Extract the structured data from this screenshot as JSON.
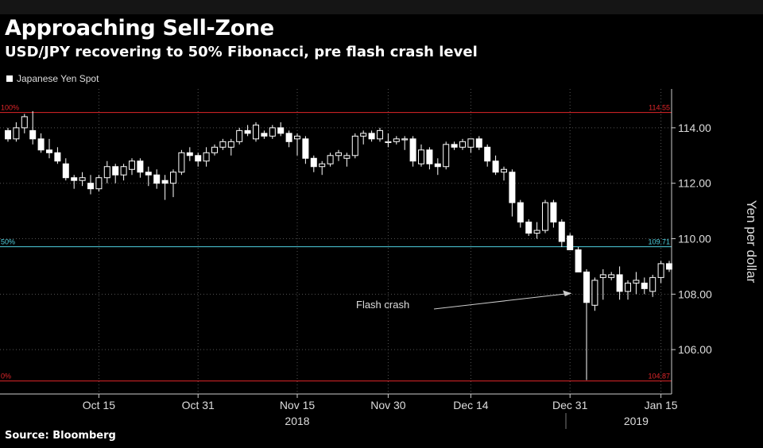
{
  "chart_data": {
    "type": "candlestick",
    "title": "Approaching Sell-Zone",
    "subtitle": "USD/JPY recovering to 50% Fibonacci, pre flash crash level",
    "series_name": "Japanese Yen Spot",
    "ylabel": "Yen per dollar",
    "source": "Source: Bloomberg",
    "y_range": [
      104.4,
      115.4
    ],
    "y_ticks": [
      {
        "value": 106,
        "label": "106.00"
      },
      {
        "value": 108,
        "label": "108.00"
      },
      {
        "value": 110,
        "label": "110.00"
      },
      {
        "value": 112,
        "label": "112.00"
      },
      {
        "value": 114,
        "label": "114.00"
      }
    ],
    "x_ticks": [
      {
        "index": 11,
        "label": "Oct 15"
      },
      {
        "index": 23,
        "label": "Oct 31"
      },
      {
        "index": 35,
        "label": "Nov 15"
      },
      {
        "index": 46,
        "label": "Nov 30"
      },
      {
        "index": 56,
        "label": "Dec 14"
      },
      {
        "index": 68,
        "label": "Dec 31"
      },
      {
        "index": 79,
        "label": "Jan 15"
      }
    ],
    "year_labels": [
      {
        "index": 35,
        "label": "2018"
      },
      {
        "index": 76,
        "label": "2019"
      }
    ],
    "levels": [
      {
        "name": "100%",
        "value": 114.55,
        "label": "114.55",
        "color": "#e0262a"
      },
      {
        "name": "50%",
        "value": 109.71,
        "label": "109.71",
        "color": "#4fd0e0"
      },
      {
        "name": "0%",
        "value": 104.87,
        "label": "104.87",
        "color": "#e0262a"
      }
    ],
    "annotation": {
      "text": "Flash crash",
      "target_index": 70,
      "target_value": 107.6
    },
    "candles": [
      [
        113.9,
        114.0,
        113.5,
        113.6
      ],
      [
        113.6,
        114.2,
        113.5,
        114.0
      ],
      [
        114.0,
        114.5,
        113.8,
        114.4
      ],
      [
        113.9,
        114.6,
        113.4,
        113.6
      ],
      [
        113.6,
        113.8,
        113.1,
        113.2
      ],
      [
        113.2,
        113.6,
        112.9,
        113.1
      ],
      [
        113.1,
        113.3,
        112.7,
        112.8
      ],
      [
        112.7,
        112.9,
        112.1,
        112.2
      ],
      [
        112.2,
        112.3,
        111.8,
        112.1
      ],
      [
        112.1,
        112.4,
        111.9,
        112.2
      ],
      [
        112.0,
        112.3,
        111.6,
        111.8
      ],
      [
        111.8,
        112.3,
        111.7,
        112.2
      ],
      [
        112.2,
        112.8,
        112.0,
        112.6
      ],
      [
        112.6,
        112.7,
        112.0,
        112.3
      ],
      [
        112.3,
        112.7,
        112.1,
        112.6
      ],
      [
        112.5,
        112.9,
        112.3,
        112.8
      ],
      [
        112.8,
        112.9,
        112.2,
        112.4
      ],
      [
        112.4,
        112.6,
        111.9,
        112.3
      ],
      [
        112.3,
        112.5,
        111.8,
        112.0
      ],
      [
        112.1,
        112.3,
        111.4,
        112.0
      ],
      [
        112.0,
        112.5,
        111.5,
        112.4
      ],
      [
        112.4,
        113.2,
        112.3,
        113.1
      ],
      [
        113.1,
        113.3,
        112.8,
        113.0
      ],
      [
        113.0,
        113.1,
        112.6,
        112.8
      ],
      [
        112.8,
        113.3,
        112.6,
        113.1
      ],
      [
        113.1,
        113.4,
        113.0,
        113.3
      ],
      [
        113.3,
        113.6,
        113.2,
        113.5
      ],
      [
        113.3,
        113.6,
        113.0,
        113.5
      ],
      [
        113.5,
        114.0,
        113.4,
        113.9
      ],
      [
        113.9,
        114.1,
        113.7,
        113.8
      ],
      [
        113.6,
        114.2,
        113.5,
        114.1
      ],
      [
        113.8,
        113.9,
        113.6,
        113.7
      ],
      [
        113.7,
        114.1,
        113.6,
        114.0
      ],
      [
        114.0,
        114.2,
        113.7,
        113.8
      ],
      [
        113.8,
        113.9,
        113.3,
        113.5
      ],
      [
        113.6,
        113.8,
        113.0,
        113.7
      ],
      [
        113.6,
        113.7,
        112.7,
        112.9
      ],
      [
        112.9,
        113.0,
        112.4,
        112.6
      ],
      [
        112.6,
        112.8,
        112.3,
        112.7
      ],
      [
        112.7,
        113.1,
        112.6,
        113.0
      ],
      [
        113.0,
        113.2,
        112.8,
        113.1
      ],
      [
        112.9,
        113.1,
        112.6,
        113.0
      ],
      [
        113.0,
        113.8,
        112.9,
        113.7
      ],
      [
        113.7,
        113.9,
        113.4,
        113.8
      ],
      [
        113.8,
        113.9,
        113.5,
        113.6
      ],
      [
        113.6,
        114.0,
        113.5,
        113.9
      ],
      [
        113.5,
        113.8,
        113.3,
        113.5
      ],
      [
        113.5,
        113.7,
        113.4,
        113.6
      ],
      [
        113.6,
        113.7,
        113.2,
        113.6
      ],
      [
        113.6,
        113.7,
        112.6,
        112.8
      ],
      [
        112.7,
        113.4,
        112.6,
        113.2
      ],
      [
        113.2,
        113.3,
        112.5,
        112.7
      ],
      [
        112.7,
        112.9,
        112.3,
        112.6
      ],
      [
        112.6,
        113.5,
        112.5,
        113.4
      ],
      [
        113.4,
        113.5,
        113.2,
        113.3
      ],
      [
        113.3,
        113.6,
        113.2,
        113.5
      ],
      [
        113.3,
        113.6,
        113.1,
        113.6
      ],
      [
        113.6,
        113.7,
        113.2,
        113.3
      ],
      [
        113.3,
        113.4,
        112.6,
        112.8
      ],
      [
        112.8,
        113.0,
        112.3,
        112.4
      ],
      [
        112.4,
        112.6,
        112.1,
        112.5
      ],
      [
        112.4,
        112.5,
        110.8,
        111.3
      ],
      [
        111.3,
        111.4,
        110.4,
        110.6
      ],
      [
        110.6,
        110.7,
        110.1,
        110.2
      ],
      [
        110.2,
        110.6,
        110.0,
        110.3
      ],
      [
        110.3,
        111.4,
        110.2,
        111.3
      ],
      [
        111.3,
        111.4,
        110.4,
        110.6
      ],
      [
        110.6,
        110.7,
        109.7,
        109.9
      ],
      [
        110.1,
        110.2,
        109.6,
        109.6
      ],
      [
        109.6,
        109.7,
        108.8,
        108.8
      ],
      [
        108.8,
        108.9,
        104.9,
        107.7
      ],
      [
        107.6,
        108.6,
        107.4,
        108.5
      ],
      [
        108.6,
        108.9,
        107.8,
        108.7
      ],
      [
        108.6,
        108.8,
        108.5,
        108.7
      ],
      [
        108.7,
        109.0,
        107.8,
        108.1
      ],
      [
        108.1,
        108.5,
        107.8,
        108.4
      ],
      [
        108.4,
        108.8,
        108.0,
        108.5
      ],
      [
        108.4,
        108.6,
        108.0,
        108.2
      ],
      [
        108.1,
        108.7,
        107.9,
        108.6
      ],
      [
        108.6,
        109.2,
        108.4,
        109.1
      ],
      [
        109.1,
        109.2,
        108.8,
        108.9
      ]
    ]
  }
}
